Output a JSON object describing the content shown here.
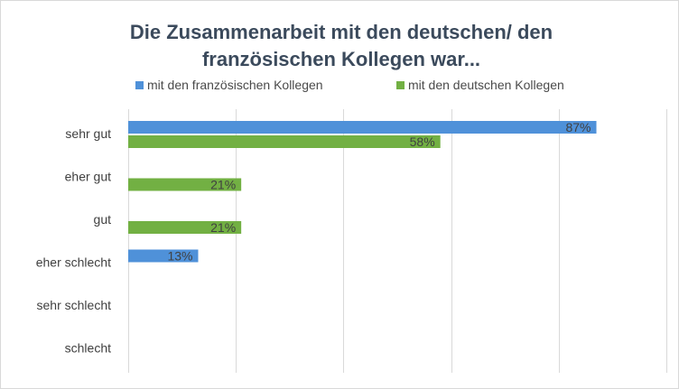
{
  "chart_data": {
    "type": "bar",
    "orientation": "horizontal",
    "title_lines": [
      "Die Zusammenarbeit mit den deutschen/ den",
      "französischen Kollegen war..."
    ],
    "categories": [
      "sehr gut",
      "eher gut",
      "gut",
      "eher schlecht",
      "sehr schlecht",
      "schlecht"
    ],
    "series": [
      {
        "name": "mit den französischen Kollegen",
        "color": "#4f91d9",
        "values": [
          87,
          null,
          null,
          13,
          null,
          null
        ],
        "labels": [
          "87%",
          "",
          "",
          "13%",
          "",
          ""
        ]
      },
      {
        "name": "mit den deutschen Kollegen",
        "color": "#72b043",
        "values": [
          58,
          21,
          21,
          null,
          null,
          null
        ],
        "labels": [
          "58%",
          "21%",
          "21%",
          "",
          "",
          ""
        ]
      }
    ],
    "xlim": [
      0,
      100
    ],
    "gridlines": [
      0,
      20,
      40,
      60,
      80,
      100
    ],
    "legend_position": "top",
    "unit": "%"
  }
}
